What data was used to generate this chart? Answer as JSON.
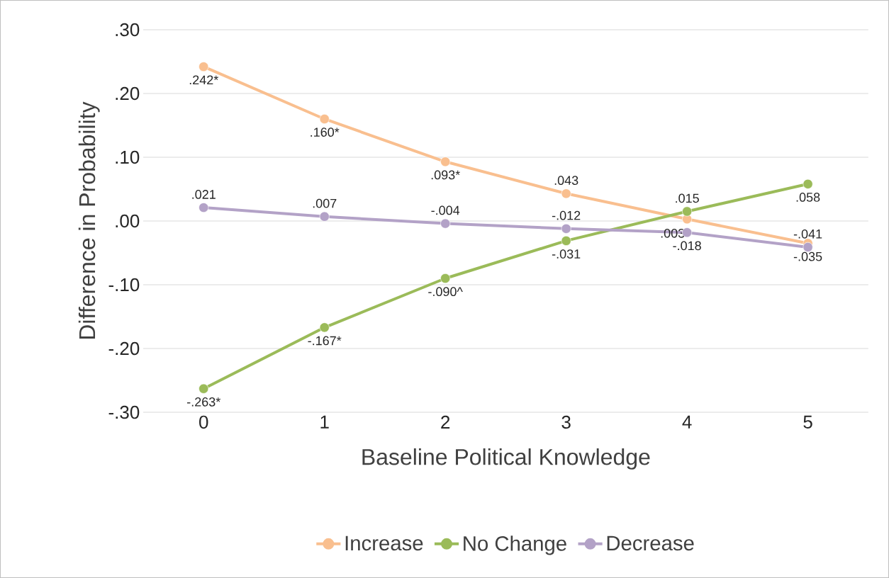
{
  "chart_data": {
    "type": "line",
    "xlabel": "Baseline Political Knowledge",
    "ylabel": "Difference in Probability",
    "categories": [
      "0",
      "1",
      "2",
      "3",
      "4",
      "5"
    ],
    "series": [
      {
        "name": "Increase",
        "color": "#f9bf8f",
        "values": [
          0.242,
          0.16,
          0.093,
          0.043,
          0.003,
          -0.035
        ],
        "value_labels": [
          ".242*",
          ".160*",
          ".093*",
          ".043",
          ".003",
          "-.035"
        ]
      },
      {
        "name": "No Change",
        "color": "#9bbb59",
        "values": [
          -0.263,
          -0.167,
          -0.09,
          -0.031,
          0.015,
          0.058
        ],
        "value_labels": [
          "-.263*",
          "-.167*",
          "-.090^",
          "-.031",
          ".015",
          ".058"
        ]
      },
      {
        "name": "Decrease",
        "color": "#b3a2c7",
        "values": [
          0.021,
          0.007,
          -0.004,
          -0.012,
          -0.018,
          -0.041
        ],
        "value_labels": [
          ".021",
          ".007",
          "-.004",
          "-.012",
          "-.018",
          "-.041"
        ]
      }
    ],
    "ylim": [
      -0.3,
      0.3
    ],
    "yticks": [
      {
        "value": -0.3,
        "label": "-.30"
      },
      {
        "value": -0.2,
        "label": "-.20"
      },
      {
        "value": -0.1,
        "label": "-.10"
      },
      {
        "value": 0,
        "label": ".00"
      },
      {
        "value": 0.1,
        "label": ".10"
      },
      {
        "value": 0.2,
        "label": ".20"
      },
      {
        "value": 0.3,
        "label": ".30"
      }
    ],
    "grid": "y",
    "legend": "bottom",
    "marker": "circle",
    "line_style": "solid"
  }
}
